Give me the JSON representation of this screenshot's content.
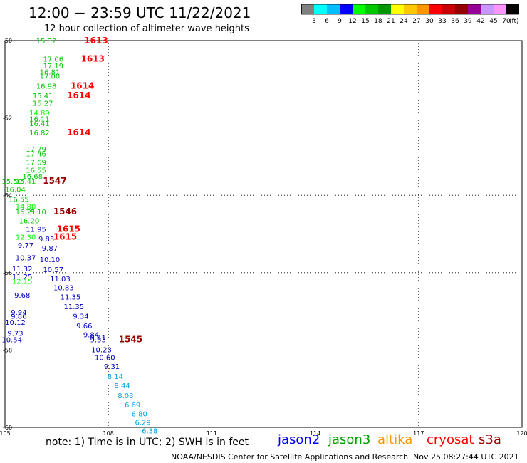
{
  "title": "12:00 − 23:59 UTC 11/22/2021",
  "subtitle": "12 hour collection of altimeter wave heights",
  "colorbar": {
    "colors": [
      "#808080",
      "#00ffff",
      "#00bfff",
      "#0000ff",
      "#00ff00",
      "#00c800",
      "#009600",
      "#ffff00",
      "#ffc800",
      "#ff9600",
      "#ff0000",
      "#c80000",
      "#960000",
      "#960096",
      "#c896ff",
      "#ff96ff",
      "#000000"
    ],
    "labels": [
      "3",
      "6",
      "9",
      "12",
      "15",
      "18",
      "21",
      "24",
      "27",
      "30",
      "33",
      "36",
      "39",
      "42",
      "45",
      "70"
    ],
    "unit": "(ft)"
  },
  "footer": {
    "note": "note:  1) Time is in UTC;  2) SWH is in feet",
    "missions": [
      {
        "name": "jason2",
        "color": "#0000ff"
      },
      {
        "name": "jason3",
        "color": "#00a000"
      },
      {
        "name": "altika",
        "color": "#ff9600"
      },
      {
        "name": "cryosat",
        "color": "#ff0000"
      },
      {
        "name": "s3a",
        "color": "#960000"
      }
    ],
    "credit": "NOAA/NESDIS Center for Satellite Applications and Research",
    "generated": "Nov 25 08:27:44 UTC 2021"
  },
  "chart_data": {
    "type": "scatter",
    "xlabel": "",
    "ylabel": "",
    "xlim": [
      105,
      120
    ],
    "ylim": [
      -60,
      -50
    ],
    "x_ticks": [
      105,
      108,
      111,
      114,
      117,
      120
    ],
    "y_ticks": [
      -50,
      -52,
      -54,
      -56,
      -58,
      -60
    ],
    "x_tick_labels": [
      "105",
      "108",
      "111",
      "114",
      "117",
      "120"
    ],
    "y_tick_labels": [
      "-50",
      "-52",
      "-54",
      "-56",
      "-58",
      "-60"
    ],
    "grid": true,
    "time_labels": [
      {
        "label": "1613",
        "lon": 107.3,
        "lat": -50.0,
        "color": "#ff0000"
      },
      {
        "label": "1613",
        "lon": 107.2,
        "lat": -50.47,
        "color": "#ff0000"
      },
      {
        "label": "1614",
        "lon": 106.9,
        "lat": -51.17,
        "color": "#ff0000"
      },
      {
        "label": "1614",
        "lon": 106.8,
        "lat": -51.42,
        "color": "#ff0000"
      },
      {
        "label": "1614",
        "lon": 106.8,
        "lat": -52.38,
        "color": "#ff0000"
      },
      {
        "label": "1547",
        "lon": 106.1,
        "lat": -53.63,
        "color": "#960000"
      },
      {
        "label": "1546",
        "lon": 106.4,
        "lat": -54.42,
        "color": "#960000"
      },
      {
        "label": "1615",
        "lon": 106.5,
        "lat": -54.87,
        "color": "#ff0000"
      },
      {
        "label": "1615",
        "lon": 106.4,
        "lat": -55.07,
        "color": "#ff0000"
      },
      {
        "label": "1545",
        "lon": 108.3,
        "lat": -57.73,
        "color": "#960000"
      }
    ],
    "points": [
      {
        "v": "15.32",
        "lon": 106.2,
        "lat": -50.0,
        "color": "#00c800"
      },
      {
        "v": "17.06",
        "lon": 106.4,
        "lat": -50.47,
        "color": "#00c800"
      },
      {
        "v": "17.19",
        "lon": 106.4,
        "lat": -50.64,
        "color": "#00c800"
      },
      {
        "v": "16.81",
        "lon": 106.3,
        "lat": -50.8,
        "color": "#00c800"
      },
      {
        "v": "17.00",
        "lon": 106.3,
        "lat": -50.91,
        "color": "#00c800"
      },
      {
        "v": "16.98",
        "lon": 106.2,
        "lat": -51.17,
        "color": "#00c800"
      },
      {
        "v": "15.41",
        "lon": 106.1,
        "lat": -51.42,
        "color": "#00c800"
      },
      {
        "v": "15.27",
        "lon": 106.1,
        "lat": -51.61,
        "color": "#00c800"
      },
      {
        "v": "14.89",
        "lon": 106.0,
        "lat": -51.86,
        "color": "#00ff00"
      },
      {
        "v": "16.11",
        "lon": 106.0,
        "lat": -52.02,
        "color": "#00c800"
      },
      {
        "v": "16.41",
        "lon": 106.0,
        "lat": -52.14,
        "color": "#00c800"
      },
      {
        "v": "16.82",
        "lon": 106.0,
        "lat": -52.38,
        "color": "#00c800"
      },
      {
        "v": "17.79",
        "lon": 105.9,
        "lat": -52.8,
        "color": "#00c800"
      },
      {
        "v": "17.46",
        "lon": 105.9,
        "lat": -52.92,
        "color": "#00c800"
      },
      {
        "v": "17.69",
        "lon": 105.9,
        "lat": -53.14,
        "color": "#00c800"
      },
      {
        "v": "16.55",
        "lon": 105.9,
        "lat": -53.34,
        "color": "#00c800"
      },
      {
        "v": "16.68",
        "lon": 105.8,
        "lat": -53.5,
        "color": "#00c800"
      },
      {
        "v": "15.50",
        "lon": 105.2,
        "lat": -53.63,
        "color": "#00c800"
      },
      {
        "v": "15.41",
        "lon": 105.6,
        "lat": -53.63,
        "color": "#00c800"
      },
      {
        "v": "16.04",
        "lon": 105.3,
        "lat": -53.84,
        "color": "#00c800"
      },
      {
        "v": "16.55",
        "lon": 105.4,
        "lat": -54.1,
        "color": "#00c800"
      },
      {
        "v": "14.80",
        "lon": 105.6,
        "lat": -54.28,
        "color": "#00ff00"
      },
      {
        "v": "16.21",
        "lon": 105.6,
        "lat": -54.42,
        "color": "#00c800"
      },
      {
        "v": "15.10",
        "lon": 105.9,
        "lat": -54.42,
        "color": "#00c800"
      },
      {
        "v": "16.20",
        "lon": 105.7,
        "lat": -54.65,
        "color": "#00c800"
      },
      {
        "v": "11.95",
        "lon": 105.9,
        "lat": -54.87,
        "color": "#0000c0"
      },
      {
        "v": "12.30",
        "lon": 105.6,
        "lat": -55.07,
        "color": "#00ff00"
      },
      {
        "v": "9.83",
        "lon": 106.2,
        "lat": -55.12,
        "color": "#0000c0"
      },
      {
        "v": "9.77",
        "lon": 105.6,
        "lat": -55.29,
        "color": "#0000c0"
      },
      {
        "v": "9.87",
        "lon": 106.3,
        "lat": -55.36,
        "color": "#0000c0"
      },
      {
        "v": "10.37",
        "lon": 105.6,
        "lat": -55.61,
        "color": "#0000c0"
      },
      {
        "v": "10.10",
        "lon": 106.3,
        "lat": -55.65,
        "color": "#0000c0"
      },
      {
        "v": "11.32",
        "lon": 105.5,
        "lat": -55.89,
        "color": "#0000c0"
      },
      {
        "v": "10.57",
        "lon": 106.4,
        "lat": -55.91,
        "color": "#0000c0"
      },
      {
        "v": "11.25",
        "lon": 105.5,
        "lat": -56.1,
        "color": "#0000c0"
      },
      {
        "v": "12.15",
        "lon": 105.5,
        "lat": -56.22,
        "color": "#00ff00"
      },
      {
        "v": "11.03",
        "lon": 106.6,
        "lat": -56.15,
        "color": "#0000c0"
      },
      {
        "v": "10.83",
        "lon": 106.7,
        "lat": -56.38,
        "color": "#0000c0"
      },
      {
        "v": "9.68",
        "lon": 105.5,
        "lat": -56.57,
        "color": "#0000c0"
      },
      {
        "v": "11.35",
        "lon": 106.9,
        "lat": -56.62,
        "color": "#0000c0"
      },
      {
        "v": "11.35",
        "lon": 107.0,
        "lat": -56.87,
        "color": "#0000c0"
      },
      {
        "v": "9.34",
        "lon": 107.2,
        "lat": -57.12,
        "color": "#0000c0"
      },
      {
        "v": "9.94",
        "lon": 105.4,
        "lat": -57.02,
        "color": "#0000c0"
      },
      {
        "v": "9.86",
        "lon": 105.4,
        "lat": -57.12,
        "color": "#0000c0"
      },
      {
        "v": "10.12",
        "lon": 105.3,
        "lat": -57.27,
        "color": "#0000c0"
      },
      {
        "v": "9.66",
        "lon": 107.3,
        "lat": -57.37,
        "color": "#0000c0"
      },
      {
        "v": "9.73",
        "lon": 105.3,
        "lat": -57.56,
        "color": "#0000c0"
      },
      {
        "v": "9.84",
        "lon": 107.5,
        "lat": -57.6,
        "color": "#0000c0"
      },
      {
        "v": "10.54",
        "lon": 105.2,
        "lat": -57.73,
        "color": "#0000c0"
      },
      {
        "v": "9.41",
        "lon": 107.7,
        "lat": -57.68,
        "color": "#0000c0"
      },
      {
        "v": "9.53",
        "lon": 107.7,
        "lat": -57.73,
        "color": "#0000c0"
      },
      {
        "v": "10.23",
        "lon": 107.8,
        "lat": -57.98,
        "color": "#0000c0"
      },
      {
        "v": "10.60",
        "lon": 107.9,
        "lat": -58.19,
        "color": "#0000c0"
      },
      {
        "v": "9.31",
        "lon": 108.1,
        "lat": -58.42,
        "color": "#0000c0"
      },
      {
        "v": "8.14",
        "lon": 108.2,
        "lat": -58.67,
        "color": "#00a0e0"
      },
      {
        "v": "8.44",
        "lon": 108.4,
        "lat": -58.91,
        "color": "#00a0e0"
      },
      {
        "v": "8.03",
        "lon": 108.5,
        "lat": -59.17,
        "color": "#00a0e0"
      },
      {
        "v": "6.69",
        "lon": 108.7,
        "lat": -59.41,
        "color": "#00a0e0"
      },
      {
        "v": "6.80",
        "lon": 108.9,
        "lat": -59.64,
        "color": "#00a0e0"
      },
      {
        "v": "6.29",
        "lon": 109.0,
        "lat": -59.86,
        "color": "#00a0e0"
      },
      {
        "v": "6.38",
        "lon": 109.2,
        "lat": -60.08,
        "color": "#00a0e0"
      }
    ]
  }
}
